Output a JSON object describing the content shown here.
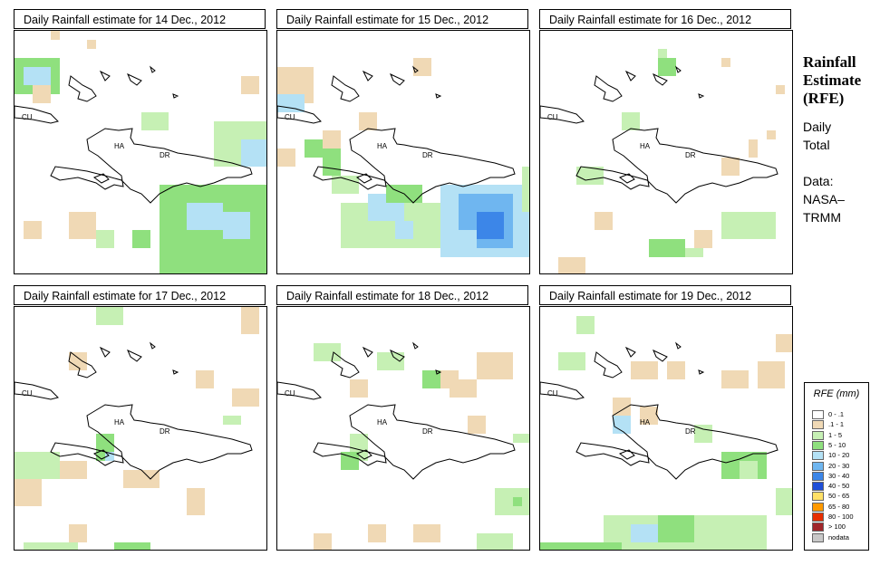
{
  "panels": [
    {
      "title": "Daily Rainfall estimate for  14 Dec., 2012",
      "labels": {
        "cu": "CU",
        "ha": "HA",
        "dr": "DR"
      }
    },
    {
      "title": "Daily Rainfall estimate for  15 Dec., 2012",
      "labels": {
        "cu": "CU",
        "ha": "HA",
        "dr": "DR"
      }
    },
    {
      "title": "Daily Rainfall estimate for  16 Dec., 2012",
      "labels": {
        "cu": "CU",
        "ha": "HA",
        "dr": "DR"
      }
    },
    {
      "title": "Daily Rainfall estimate for  17 Dec., 2012",
      "labels": {
        "cu": "CU",
        "ha": "HA",
        "dr": "DR"
      }
    },
    {
      "title": "Daily Rainfall estimate for  18 Dec., 2012",
      "labels": {
        "cu": "CU",
        "ha": "HA",
        "dr": "DR"
      }
    },
    {
      "title": "Daily Rainfall estimate for  19 Dec., 2012",
      "labels": {
        "cu": "CU",
        "ha": "HA",
        "dr": "DR"
      }
    }
  ],
  "sidebar": {
    "title_line1": "Rainfall",
    "title_line2": "Estimate",
    "title_line3": "(RFE)",
    "daily": "Daily",
    "total": "Total",
    "data_label": "Data:",
    "source1": "NASA–",
    "source2": "TRMM"
  },
  "legend": {
    "title": "RFE (mm)",
    "items": [
      {
        "label": "0 - .1",
        "color": "#ffffff"
      },
      {
        "label": ".1 - 1",
        "color": "#f0d9b5"
      },
      {
        "label": "1 - 5",
        "color": "#c6f0b4"
      },
      {
        "label": "5 - 10",
        "color": "#8fe07e"
      },
      {
        "label": "10 - 20",
        "color": "#b4e1f5"
      },
      {
        "label": "20 - 30",
        "color": "#6fb6f0"
      },
      {
        "label": "30 - 40",
        "color": "#3c86e8"
      },
      {
        "label": "40 - 50",
        "color": "#1f4fd8"
      },
      {
        "label": "50 - 65",
        "color": "#ffe066"
      },
      {
        "label": "65 - 80",
        "color": "#ff9900"
      },
      {
        "label": "80 - 100",
        "color": "#e62e00"
      },
      {
        "label": "> 100",
        "color": "#a0262a"
      },
      {
        "label": "nodata",
        "color": "#c8c8c8"
      }
    ]
  }
}
